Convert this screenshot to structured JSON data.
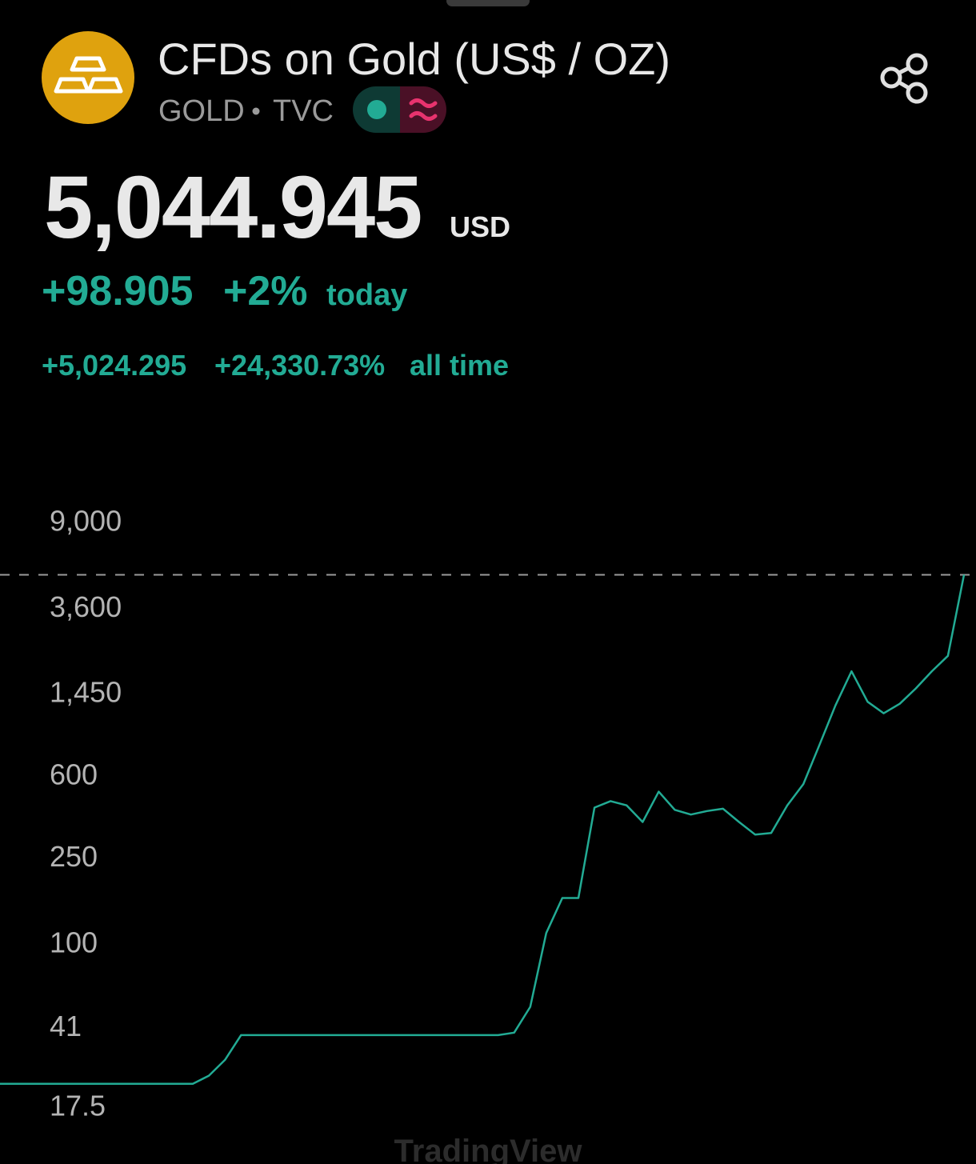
{
  "header": {
    "title": "CFDs on Gold (US$ / OZ)",
    "symbol": "GOLD",
    "exchange": "TVC",
    "price": "5,044.945",
    "currency": "USD",
    "change": "+98.905",
    "change_percent": "+2%",
    "change_period": "today",
    "all_time_change": "+5,024.295",
    "all_time_change_percent": "+24,330.73%",
    "all_time_period": "all time"
  },
  "chart_data": {
    "type": "line",
    "log_scale": true,
    "grid": false,
    "color": "#22ab94",
    "ylim": [
      12.6,
      11700
    ],
    "yticks": [
      {
        "value": 9000,
        "label": "9,000"
      },
      {
        "value": 3600,
        "label": "3,600"
      },
      {
        "value": 1450,
        "label": "1,450"
      },
      600,
      250,
      100,
      41,
      17.5
    ],
    "values": [
      22,
      22,
      22,
      22,
      22,
      22,
      22,
      22,
      22,
      22,
      22,
      22,
      22,
      24,
      28.4,
      37,
      37,
      37,
      37,
      37,
      37,
      37,
      37,
      37,
      37,
      37,
      37,
      37,
      37,
      37,
      37,
      37,
      38,
      50,
      110,
      160,
      160,
      420,
      450,
      430,
      360,
      498,
      410,
      390,
      405,
      415,
      360,
      315,
      320,
      430,
      540,
      820,
      1250,
      1800,
      1300,
      1150,
      1273,
      1500,
      1800,
      2124,
      5045
    ],
    "watermark": "TradingView"
  }
}
